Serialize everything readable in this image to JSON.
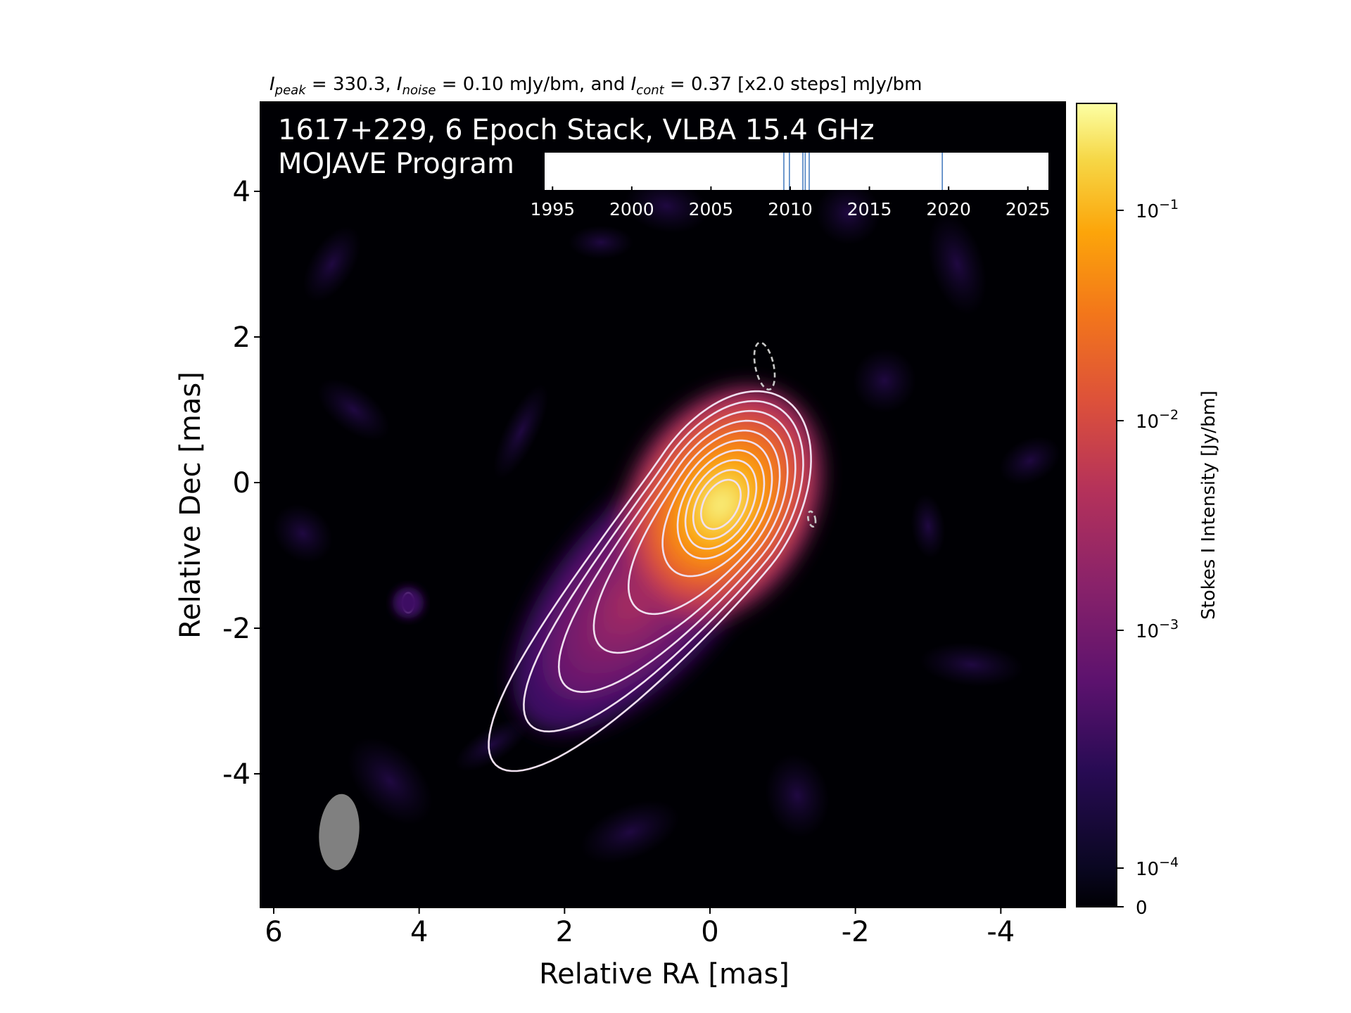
{
  "chart_data": {
    "type": "heatmap",
    "header": {
      "peak_symbol": "I",
      "peak_sub": "peak",
      "peak_value": " = 330.3, ",
      "noise_symbol": "I",
      "noise_sub": "noise",
      "noise_value": " = 0.10 mJy/bm, and ",
      "cont_symbol": "I",
      "cont_sub": "cont",
      "cont_value": " = 0.37 [x2.0 steps] mJy/bm"
    },
    "overlay_title_line1": "1617+229, 6 Epoch Stack, VLBA 15.4 GHz",
    "overlay_title_line2": "MOJAVE Program",
    "xlabel": "Relative RA [mas]",
    "ylabel": "Relative Dec [mas]",
    "xlim": [
      6.2,
      -4.9
    ],
    "ylim": [
      -5.8,
      5.2
    ],
    "x_ticks": [
      6,
      4,
      2,
      0,
      -2,
      -4
    ],
    "x_tick_labels": [
      "6",
      "4",
      "2",
      "0",
      "-2",
      "-4"
    ],
    "y_ticks": [
      4,
      2,
      0,
      -2,
      -4
    ],
    "y_tick_labels": [
      "4",
      "2",
      "0",
      "-2",
      "-4"
    ],
    "grid": false,
    "colormap": "inferno",
    "background_color": "#000004",
    "contour_color": "#f0e0f0",
    "source": {
      "peak_ra": -0.15,
      "peak_dec": -0.3,
      "jet_end_ra": 1.9,
      "jet_end_dec": -2.6,
      "position_angle_deg": 30
    },
    "contour_levels_mJy_per_bm": [
      0.37,
      0.74,
      1.48,
      2.96,
      5.92,
      11.84,
      23.68,
      47.36,
      94.72,
      189.44
    ],
    "negative_contours": [
      {
        "ra": -0.75,
        "dec": 1.6
      },
      {
        "ra": -1.4,
        "dec": -0.5
      }
    ],
    "isolated_contour": {
      "ra": 4.15,
      "dec": -1.65
    },
    "beam": {
      "ra": 5.1,
      "dec": -4.8,
      "major_mas": 1.05,
      "minor_mas": 0.55,
      "pa_deg": 5,
      "color": "#808080"
    },
    "colorbar": {
      "label": "Stokes I Intensity [Jy/bm]",
      "scale": "log",
      "ticks": [
        {
          "label": "10",
          "exp": "−1",
          "value": 0.1
        },
        {
          "label": "10",
          "exp": "−2",
          "value": 0.01
        },
        {
          "label": "10",
          "exp": "−3",
          "value": 0.001
        },
        {
          "label": "10",
          "exp": "−4",
          "value": 0.0001
        },
        {
          "label": "0",
          "exp": "",
          "value": 0
        }
      ],
      "max": 0.3303
    },
    "epoch_timeline": {
      "ticks": [
        1995,
        2000,
        2005,
        2010,
        2015,
        2020,
        2025
      ],
      "tick_labels": [
        "1995",
        "2000",
        "2005",
        "2010",
        "2015",
        "2020",
        "2025"
      ],
      "range": [
        1994.5,
        2026.3
      ],
      "epochs": [
        2009.6,
        2009.95,
        2010.8,
        2010.95,
        2011.2,
        2019.6
      ],
      "line_color": "#4a7fc1"
    }
  }
}
